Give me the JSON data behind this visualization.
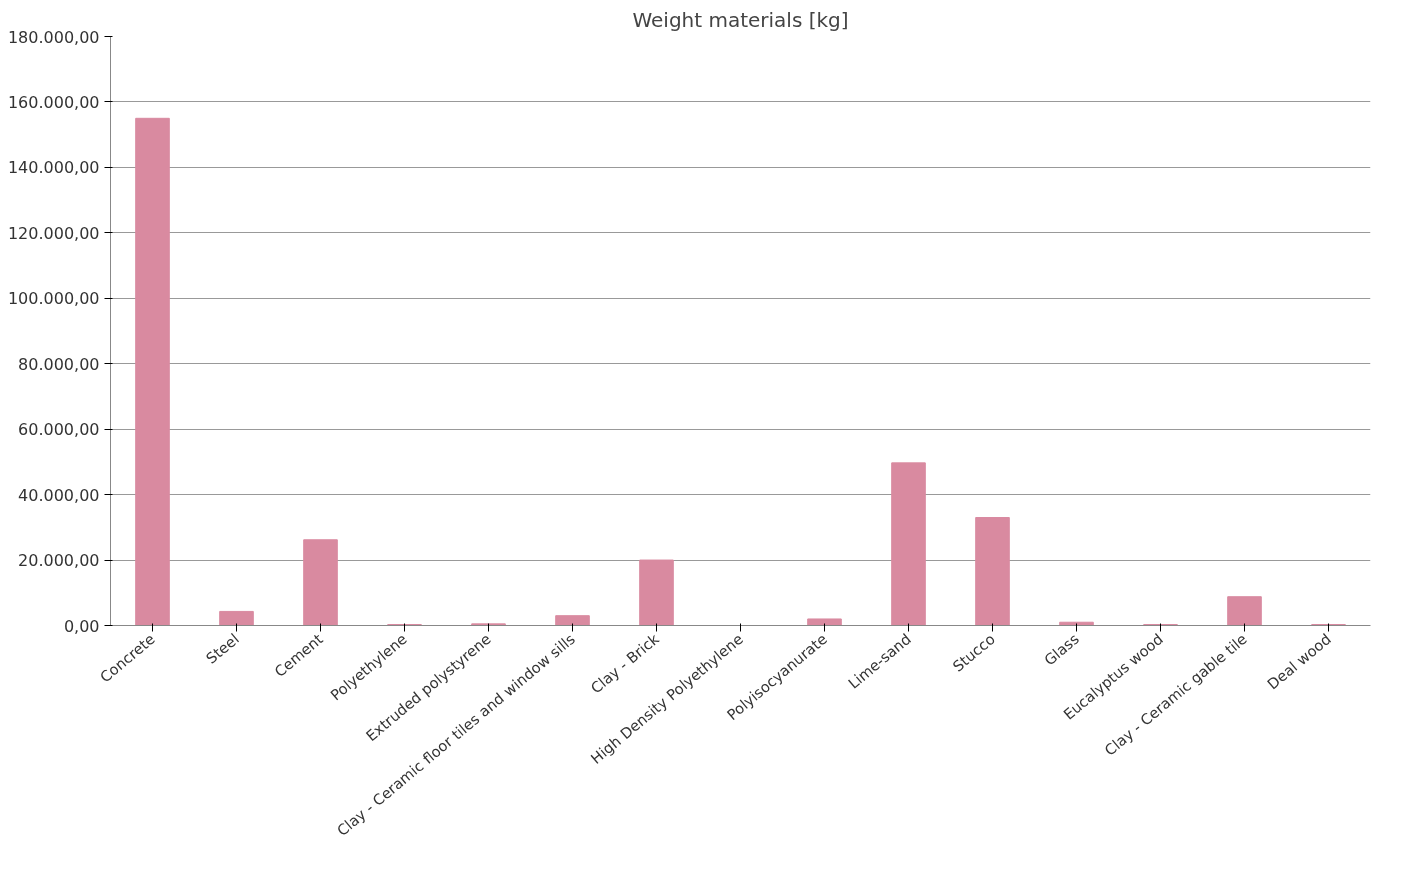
{
  "chart_data": {
    "type": "bar",
    "title": "Weight materials [kg]",
    "categories": [
      "Concrete",
      "Steel",
      "Cement",
      "Polyethylene",
      "Extruded polystyrene",
      "Clay - Ceramic floor tiles and window sills",
      "Clay - Brick",
      "High Density Polyethylene",
      "Polyisocyanurate",
      "Lime-sand",
      "Stucco",
      "Glass",
      "Eucalyptus wood",
      "Clay - Ceramic gable tile",
      "Deal wood"
    ],
    "values": [
      155000,
      4300,
      26200,
      300,
      500,
      3000,
      20000,
      null,
      2000,
      49700,
      33000,
      1000,
      300,
      8800,
      300
    ],
    "color": "#d98aa0",
    "ylim": [
      0,
      180000
    ],
    "yticks": [
      {
        "value": 0,
        "label": "0,00"
      },
      {
        "value": 20000,
        "label": "20.000,00"
      },
      {
        "value": 40000,
        "label": "40.000,00"
      },
      {
        "value": 60000,
        "label": "60.000,00"
      },
      {
        "value": 80000,
        "label": "80.000,00"
      },
      {
        "value": 100000,
        "label": "100.000,00"
      },
      {
        "value": 120000,
        "label": "120.000,00"
      },
      {
        "value": 140000,
        "label": "140.000,00"
      },
      {
        "value": 160000,
        "label": "160.000,00"
      },
      {
        "value": 180000,
        "label": "180.000,00"
      }
    ],
    "grid": "y"
  }
}
